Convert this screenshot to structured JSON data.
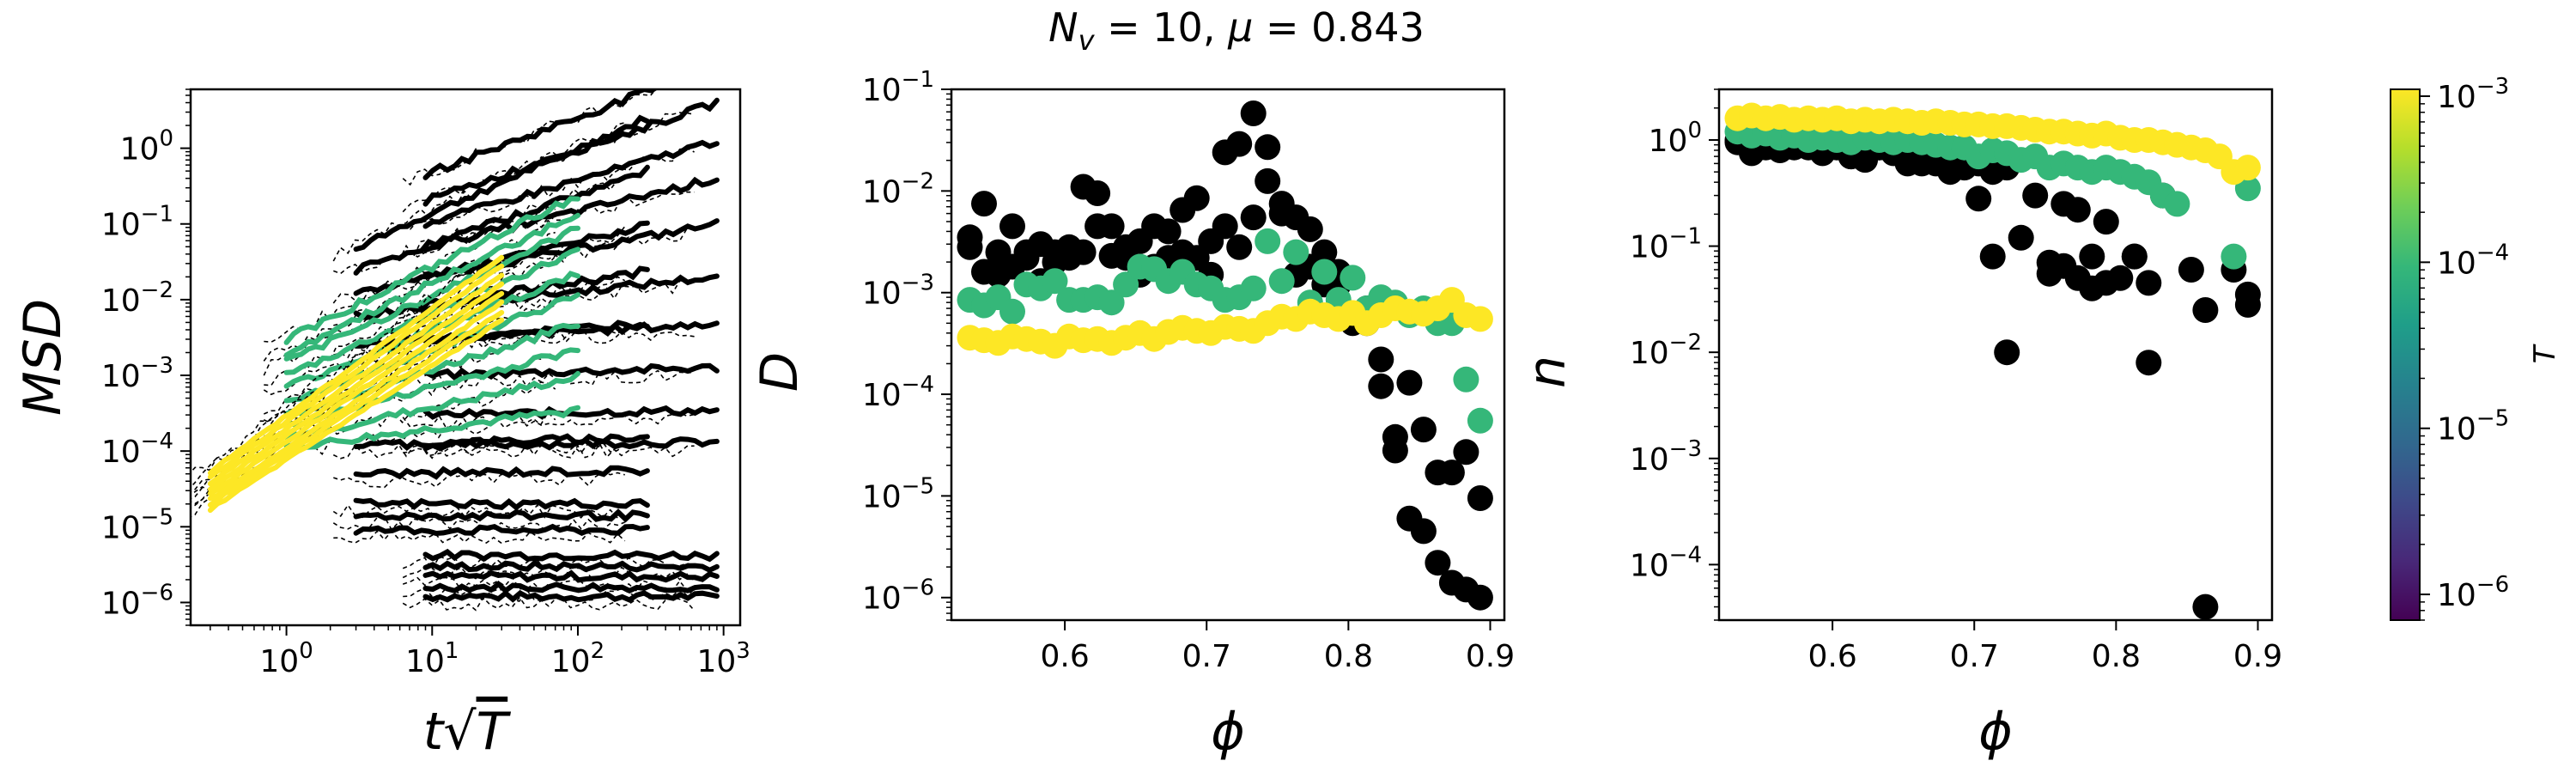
{
  "figure": {
    "suptitle": "N_v = 10, μ = 0.843",
    "suptitle_parts": {
      "N": "N",
      "sub_v": "v",
      "eq1": " = 10, ",
      "mu": "μ",
      "eq2": " = 0.843"
    }
  },
  "chart_data": [
    {
      "type": "line",
      "panel": "msd",
      "xlabel": "t√T",
      "xlabel_parts": {
        "t": "t",
        "sqrt": "√",
        "T": "T"
      },
      "ylabel": "MSD",
      "xscale": "log",
      "yscale": "log",
      "xlim": [
        0.22,
        1300
      ],
      "ylim": [
        5e-07,
        6
      ],
      "xticks": [
        {
          "value": 1,
          "base": "10",
          "exp": "0"
        },
        {
          "value": 10,
          "base": "10",
          "exp": "1"
        },
        {
          "value": 100,
          "base": "10",
          "exp": "2"
        },
        {
          "value": 1000,
          "base": "10",
          "exp": "3"
        }
      ],
      "yticks": [
        {
          "value": 1e-06,
          "base": "10",
          "exp": "−6"
        },
        {
          "value": 1e-05,
          "base": "10",
          "exp": "−5"
        },
        {
          "value": 0.0001,
          "base": "10",
          "exp": "−4"
        },
        {
          "value": 0.001,
          "base": "10",
          "exp": "−3"
        },
        {
          "value": 0.01,
          "base": "10",
          "exp": "−2"
        },
        {
          "value": 0.1,
          "base": "10",
          "exp": "−1"
        },
        {
          "value": 1,
          "base": "10",
          "exp": "0"
        }
      ],
      "series_groups": [
        {
          "T": 1e-06,
          "x_range": [
            9,
            900
          ],
          "start_values": [
            1.2e-06,
            1.6e-06,
            2.2e-06,
            3e-06,
            4.2e-06,
            0.00012,
            0.0003,
            0.001,
            0.003,
            0.008,
            0.02,
            0.05,
            0.1,
            0.2,
            0.45
          ],
          "slopes": [
            0,
            0,
            0,
            0,
            0,
            0.02,
            0.03,
            0.05,
            0.1,
            0.2,
            0.35,
            0.45,
            0.55,
            0.65,
            0.72
          ]
        },
        {
          "T": 1e-05,
          "x_range": [
            3,
            300
          ],
          "start_values": [
            9e-06,
            1.4e-05,
            2e-05,
            5e-05,
            0.00012,
            0.0025,
            0.006,
            0.012,
            0.025,
            0.05
          ],
          "slopes": [
            0,
            0,
            0,
            0.02,
            0.05,
            0.15,
            0.3,
            0.45,
            0.65,
            0.85
          ]
        },
        {
          "T": 0.0001,
          "x_range": [
            1,
            100
          ],
          "start_values": [
            0.00011,
            0.00015,
            0.00022,
            0.0003,
            0.00045,
            0.0007,
            0.001,
            0.0015,
            0.002,
            0.003
          ],
          "slopes": [
            0.25,
            0.4,
            0.5,
            0.6,
            0.7,
            0.75,
            0.82,
            0.88,
            0.92,
            0.95
          ]
        },
        {
          "T": 0.001,
          "x_range": [
            0.3,
            30
          ],
          "start_values": [
            1.7e-05,
            2e-05,
            2.3e-05,
            2.7e-05,
            3.2e-05,
            3.8e-05,
            4.5e-05,
            5.3e-05
          ],
          "slopes": [
            1.25,
            1.27,
            1.3,
            1.33,
            1.35,
            1.37,
            1.4,
            1.42
          ]
        }
      ],
      "fit_lines": "dashed black"
    },
    {
      "type": "scatter",
      "panel": "D",
      "xlabel": "ϕ",
      "ylabel": "D",
      "xscale": "linear",
      "yscale": "log",
      "xlim": [
        0.52,
        0.91
      ],
      "ylim": [
        6e-07,
        0.1
      ],
      "xticks": [
        {
          "value": 0.6,
          "label": "0.6"
        },
        {
          "value": 0.7,
          "label": "0.7"
        },
        {
          "value": 0.8,
          "label": "0.8"
        },
        {
          "value": 0.9,
          "label": "0.9"
        }
      ],
      "yticks": [
        {
          "value": 1e-06,
          "base": "10",
          "exp": "−6"
        },
        {
          "value": 1e-05,
          "base": "10",
          "exp": "−5"
        },
        {
          "value": 0.0001,
          "base": "10",
          "exp": "−4"
        },
        {
          "value": 0.001,
          "base": "10",
          "exp": "−3"
        },
        {
          "value": 0.01,
          "base": "10",
          "exp": "−2"
        },
        {
          "value": 0.1,
          "base": "10",
          "exp": "−1"
        }
      ],
      "series": [
        {
          "T": 1e-06,
          "x": [
            0.533,
            0.543,
            0.553,
            0.563,
            0.573,
            0.583,
            0.593,
            0.603,
            0.613,
            0.623,
            0.633,
            0.643,
            0.653,
            0.663,
            0.673,
            0.683,
            0.693,
            0.703,
            0.713,
            0.723,
            0.733,
            0.743,
            0.753,
            0.763,
            0.773,
            0.783,
            0.793,
            0.803,
            0.813,
            0.823,
            0.833,
            0.843,
            0.853,
            0.863,
            0.873,
            0.883,
            0.893
          ],
          "y": [
            0.0035,
            0.0075,
            0.0015,
            0.0045,
            0.0022,
            0.003,
            0.0025,
            0.0028,
            0.011,
            0.0095,
            0.0045,
            0.0028,
            0.0032,
            0.0018,
            0.004,
            0.0025,
            0.0085,
            0.0032,
            0.024,
            0.029,
            0.058,
            0.027,
            0.0075,
            0.0055,
            0.0042,
            0.0025,
            0.0012,
            0.00055,
            0.0007,
            0.00012,
            2.8e-05,
            6e-06,
            4.5e-06,
            2.2e-06,
            1.4e-06,
            1.2e-06,
            1e-06
          ]
        },
        {
          "T": 1e-05,
          "x": [
            0.533,
            0.543,
            0.553,
            0.563,
            0.573,
            0.583,
            0.593,
            0.603,
            0.613,
            0.623,
            0.633,
            0.643,
            0.653,
            0.663,
            0.673,
            0.683,
            0.693,
            0.703,
            0.713,
            0.723,
            0.733,
            0.743,
            0.753,
            0.763,
            0.773,
            0.783,
            0.793,
            0.803,
            0.813,
            0.823,
            0.833,
            0.843,
            0.853,
            0.863,
            0.873,
            0.883,
            0.893
          ],
          "y": [
            0.0028,
            0.0016,
            0.0025,
            0.0018,
            0.0025,
            0.0013,
            0.002,
            0.0022,
            0.0025,
            0.0045,
            0.0023,
            0.0022,
            0.0015,
            0.0045,
            0.0022,
            0.0065,
            0.0022,
            0.0015,
            0.0045,
            0.0028,
            0.0055,
            0.0125,
            0.006,
            0.0015,
            0.0018,
            0.0012,
            0.0016,
            0.0005,
            0.0005,
            0.00022,
            3.8e-05,
            0.00013,
            4.5e-05,
            1.7e-05,
            1.7e-05,
            2.7e-05,
            9.5e-06
          ]
        },
        {
          "T": 0.0001,
          "x": [
            0.533,
            0.543,
            0.553,
            0.563,
            0.573,
            0.583,
            0.593,
            0.603,
            0.613,
            0.623,
            0.633,
            0.643,
            0.653,
            0.663,
            0.673,
            0.683,
            0.693,
            0.703,
            0.713,
            0.723,
            0.733,
            0.743,
            0.753,
            0.763,
            0.773,
            0.783,
            0.793,
            0.803,
            0.813,
            0.823,
            0.833,
            0.843,
            0.853,
            0.863,
            0.873,
            0.883,
            0.893
          ],
          "y": [
            0.00085,
            0.00075,
            0.0009,
            0.00065,
            0.0012,
            0.0011,
            0.0013,
            0.00085,
            0.00085,
            0.0009,
            0.0008,
            0.0012,
            0.0018,
            0.0017,
            0.0013,
            0.0016,
            0.0012,
            0.0011,
            0.00085,
            0.0009,
            0.0011,
            0.0032,
            0.0013,
            0.0025,
            0.0008,
            0.0016,
            0.00085,
            0.0014,
            0.0007,
            0.0009,
            0.0008,
            0.0006,
            0.0007,
            0.0005,
            0.0005,
            0.00014,
            5.5e-05
          ]
        },
        {
          "T": 0.001,
          "x": [
            0.533,
            0.543,
            0.553,
            0.563,
            0.573,
            0.583,
            0.593,
            0.603,
            0.613,
            0.623,
            0.633,
            0.643,
            0.653,
            0.663,
            0.673,
            0.683,
            0.693,
            0.703,
            0.713,
            0.723,
            0.733,
            0.743,
            0.753,
            0.763,
            0.773,
            0.783,
            0.793,
            0.803,
            0.813,
            0.823,
            0.833,
            0.843,
            0.853,
            0.863,
            0.873,
            0.883,
            0.893
          ],
          "y": [
            0.00036,
            0.00034,
            0.00032,
            0.00037,
            0.00035,
            0.00033,
            0.0003,
            0.00037,
            0.00034,
            0.00035,
            0.00032,
            0.00036,
            0.0004,
            0.00035,
            0.00041,
            0.00045,
            0.00042,
            0.0004,
            0.00046,
            0.00044,
            0.00042,
            0.0005,
            0.00058,
            0.00055,
            0.00065,
            0.0006,
            0.00055,
            0.00063,
            0.0005,
            0.0006,
            0.0007,
            0.00065,
            0.00062,
            0.0007,
            0.00085,
            0.0006,
            0.00055
          ]
        }
      ]
    },
    {
      "type": "scatter",
      "panel": "n",
      "xlabel": "ϕ",
      "ylabel": "n",
      "xscale": "linear",
      "yscale": "log",
      "xlim": [
        0.52,
        0.91
      ],
      "ylim": [
        3e-05,
        3
      ],
      "xticks": [
        {
          "value": 0.6,
          "label": "0.6"
        },
        {
          "value": 0.7,
          "label": "0.7"
        },
        {
          "value": 0.8,
          "label": "0.8"
        },
        {
          "value": 0.9,
          "label": "0.9"
        }
      ],
      "yticks": [
        {
          "value": 0.0001,
          "base": "10",
          "exp": "−4"
        },
        {
          "value": 0.001,
          "base": "10",
          "exp": "−3"
        },
        {
          "value": 0.01,
          "base": "10",
          "exp": "−2"
        },
        {
          "value": 0.1,
          "base": "10",
          "exp": "−1"
        },
        {
          "value": 1,
          "base": "10",
          "exp": "0"
        }
      ],
      "series": [
        {
          "T": 1e-06,
          "x": [
            0.533,
            0.543,
            0.553,
            0.563,
            0.573,
            0.583,
            0.593,
            0.603,
            0.613,
            0.623,
            0.633,
            0.643,
            0.653,
            0.663,
            0.673,
            0.683,
            0.693,
            0.703,
            0.713,
            0.723,
            0.753,
            0.763,
            0.773,
            0.783,
            0.793,
            0.813,
            0.823,
            0.853,
            0.863,
            0.883,
            0.893
          ],
          "y": [
            0.95,
            0.75,
            0.85,
            0.8,
            0.9,
            0.85,
            0.75,
            0.85,
            0.7,
            0.65,
            0.85,
            0.75,
            0.6,
            0.75,
            0.6,
            0.65,
            0.55,
            0.6,
            0.08,
            0.01,
            0.055,
            0.065,
            0.05,
            0.04,
            0.045,
            0.08,
            0.008,
            0.06,
            4e-05,
            0.06,
            0.035
          ]
        },
        {
          "T": 1e-05,
          "x": [
            0.533,
            0.543,
            0.553,
            0.563,
            0.573,
            0.583,
            0.593,
            0.603,
            0.613,
            0.623,
            0.633,
            0.643,
            0.653,
            0.663,
            0.673,
            0.683,
            0.693,
            0.703,
            0.713,
            0.723,
            0.733,
            0.743,
            0.753,
            0.763,
            0.773,
            0.783,
            0.793,
            0.803,
            0.813,
            0.823,
            0.833,
            0.863,
            0.893
          ],
          "y": [
            1.0,
            1.0,
            0.95,
            0.9,
            0.85,
            0.95,
            0.9,
            0.95,
            0.7,
            0.85,
            0.85,
            0.8,
            0.75,
            0.6,
            0.65,
            0.5,
            0.8,
            0.28,
            0.5,
            0.55,
            0.12,
            0.3,
            0.07,
            0.25,
            0.22,
            0.08,
            0.17,
            0.05,
            0.08,
            0.045,
            0.3,
            0.025,
            0.028
          ]
        },
        {
          "T": 0.0001,
          "x": [
            0.533,
            0.543,
            0.553,
            0.563,
            0.573,
            0.583,
            0.593,
            0.603,
            0.613,
            0.623,
            0.633,
            0.643,
            0.653,
            0.663,
            0.673,
            0.683,
            0.693,
            0.703,
            0.713,
            0.723,
            0.733,
            0.743,
            0.753,
            0.763,
            0.773,
            0.783,
            0.793,
            0.803,
            0.813,
            0.823,
            0.833,
            0.843,
            0.883,
            0.893
          ],
          "y": [
            1.2,
            1.1,
            1.15,
            1.05,
            1.1,
            1.0,
            1.05,
            1.0,
            0.95,
            1.05,
            1.0,
            0.95,
            1.0,
            0.95,
            0.9,
            0.85,
            0.85,
            0.7,
            0.8,
            0.75,
            0.65,
            0.7,
            0.55,
            0.6,
            0.55,
            0.5,
            0.55,
            0.5,
            0.45,
            0.4,
            0.3,
            0.25,
            0.08,
            0.35
          ]
        },
        {
          "T": 0.001,
          "x": [
            0.533,
            0.543,
            0.553,
            0.563,
            0.573,
            0.583,
            0.593,
            0.603,
            0.613,
            0.623,
            0.633,
            0.643,
            0.653,
            0.663,
            0.673,
            0.683,
            0.693,
            0.703,
            0.713,
            0.723,
            0.733,
            0.743,
            0.753,
            0.763,
            0.773,
            0.783,
            0.793,
            0.803,
            0.813,
            0.823,
            0.833,
            0.843,
            0.853,
            0.863,
            0.873,
            0.883,
            0.893
          ],
          "y": [
            1.6,
            1.7,
            1.6,
            1.65,
            1.55,
            1.6,
            1.55,
            1.6,
            1.5,
            1.55,
            1.5,
            1.55,
            1.5,
            1.45,
            1.5,
            1.45,
            1.4,
            1.4,
            1.35,
            1.35,
            1.3,
            1.25,
            1.2,
            1.2,
            1.15,
            1.1,
            1.15,
            1.05,
            1.0,
            1.0,
            0.95,
            0.9,
            0.85,
            0.8,
            0.7,
            0.5,
            0.55
          ]
        }
      ]
    }
  ],
  "colorbar": {
    "label": "T",
    "scale": "log",
    "range": [
      7e-07,
      0.0011
    ],
    "colormap": "viridis",
    "colors": [
      "#440154",
      "#482878",
      "#3e4989",
      "#31688e",
      "#26828e",
      "#1f9e89",
      "#35b779",
      "#6ece58",
      "#b5de2b",
      "#fde725"
    ],
    "ticks": [
      {
        "value": 1e-06,
        "base": "10",
        "exp": "−6"
      },
      {
        "value": 1e-05,
        "base": "10",
        "exp": "−5"
      },
      {
        "value": 0.0001,
        "base": "10",
        "exp": "−4"
      },
      {
        "value": 0.001,
        "base": "10",
        "exp": "−3"
      }
    ]
  },
  "series_colors": {
    "1e-06": "#440154",
    "1e-05": "#30678d",
    "0.0001": "#35b779",
    "0.001": "#fde725"
  }
}
